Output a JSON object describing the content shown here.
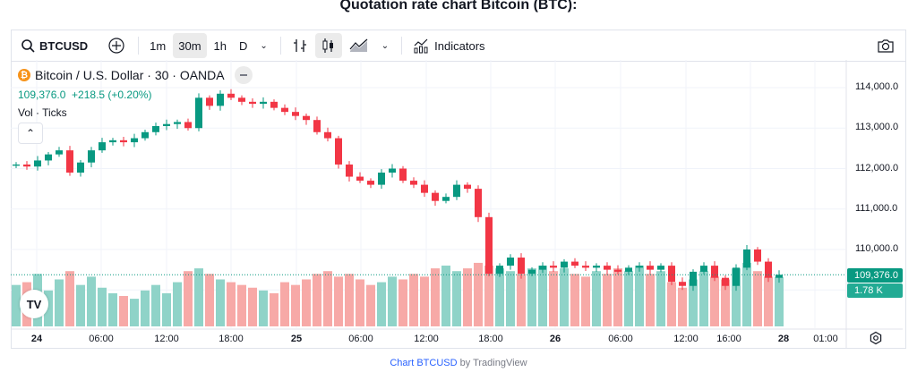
{
  "page_title": "Quotation rate chart Bitcoin (BTC):",
  "toolbar": {
    "symbol": "BTCUSD",
    "intervals": [
      "1m",
      "30m",
      "1h",
      "D"
    ],
    "active_interval": "30m",
    "indicators": "Indicators",
    "icons": [
      "search-icon",
      "add-symbol-icon",
      "chevron-down-icon",
      "bar-style-icon",
      "candle-style-icon",
      "area-style-icon",
      "indicators-icon",
      "camera-icon"
    ]
  },
  "legend": {
    "name": "Bitcoin / U.S. Dollar · 30 · OANDA",
    "values": "109,376.0  +218.5 (+0.20%)",
    "volume": "Vol · Ticks"
  },
  "colors": {
    "up": "#089981",
    "down": "#f23645",
    "up_vol": "#8fd3c8",
    "down_vol": "#f7a9a7"
  },
  "price_axis": [
    "114,000.0",
    "113,000.0",
    "112,000.0",
    "111,000.0",
    "110,000.0"
  ],
  "last_price": "109,376.0",
  "last_volume": "1.78 K",
  "time_axis": [
    {
      "t": "24",
      "day": true
    },
    {
      "t": "06:00"
    },
    {
      "t": "12:00"
    },
    {
      "t": "18:00"
    },
    {
      "t": "25",
      "day": true
    },
    {
      "t": "06:00"
    },
    {
      "t": "12:00"
    },
    {
      "t": "18:00"
    },
    {
      "t": "26",
      "day": true
    },
    {
      "t": "06:00"
    },
    {
      "t": "12:00"
    },
    {
      "t": "16:00"
    },
    {
      "t": "28",
      "day": true
    },
    {
      "t": "01:00"
    }
  ],
  "footer": {
    "link": "Chart BTCUSD",
    "rest": " by TradingView"
  },
  "chart_data": {
    "type": "candlestick",
    "title": "Bitcoin / U.S. Dollar · 30 · OANDA",
    "ylim": [
      109000,
      114300
    ],
    "close": [
      112100,
      112050,
      112200,
      112350,
      112450,
      111900,
      112150,
      112450,
      112650,
      112700,
      112650,
      112750,
      112900,
      113050,
      113100,
      113150,
      113000,
      113750,
      113550,
      113850,
      113750,
      113650,
      113600,
      113650,
      113500,
      113400,
      113300,
      113200,
      112900,
      112750,
      112100,
      111800,
      111700,
      111600,
      111900,
      112000,
      111700,
      111600,
      111400,
      111200,
      111300,
      111600,
      111500,
      110800,
      109400,
      109600,
      109800,
      109400,
      109500,
      109600,
      109550,
      109700,
      109600,
      109550,
      109600,
      109500,
      109450,
      109550,
      109600,
      109500,
      109600,
      109200,
      109100,
      109450,
      109600,
      109300,
      109100,
      109550,
      110000,
      109700,
      109300,
      109376
    ],
    "volume_k": [
      1.5,
      1.6,
      1.9,
      1.3,
      1.7,
      2.0,
      1.5,
      1.8,
      1.4,
      1.2,
      1.1,
      1.0,
      1.3,
      1.5,
      1.2,
      1.6,
      2.0,
      2.1,
      1.9,
      1.7,
      1.6,
      1.5,
      1.4,
      1.3,
      1.2,
      1.6,
      1.5,
      1.7,
      1.9,
      2.0,
      1.8,
      1.9,
      1.7,
      1.5,
      1.6,
      1.8,
      1.7,
      1.9,
      1.8,
      2.1,
      2.2,
      2.0,
      2.1,
      2.3,
      2.2,
      2.1,
      2.0,
      1.9,
      2.1,
      2.2,
      2.0,
      2.1,
      1.9,
      1.8,
      2.0,
      1.9,
      2.1,
      2.0,
      2.2,
      1.9,
      2.0,
      1.6,
      1.4,
      1.7,
      2.0,
      1.8,
      1.7,
      2.1,
      2.3,
      2.0,
      1.8,
      1.78
    ]
  }
}
